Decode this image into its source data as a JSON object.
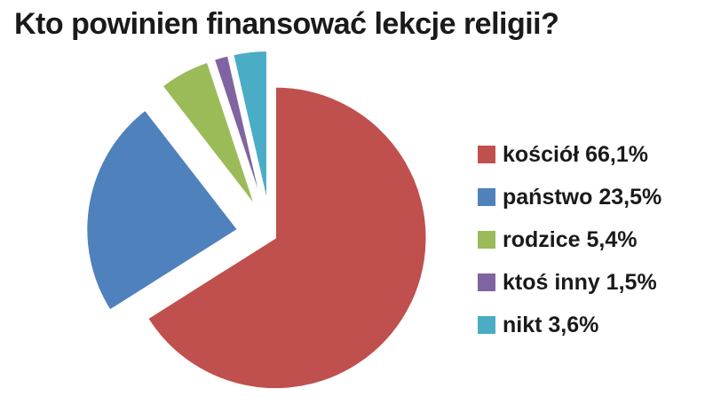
{
  "chart_data": {
    "type": "pie",
    "title": "Kto powinien finansować lekcje religii?",
    "legend_position": "right",
    "series": [
      {
        "name": "kościół",
        "value": 66.1,
        "label": "kościół 66,1%",
        "color": "#c0504d"
      },
      {
        "name": "państwo",
        "value": 23.5,
        "label": "państwo 23,5%",
        "color": "#4f81bd"
      },
      {
        "name": "rodzice",
        "value": 5.4,
        "label": "rodzice 5,4%",
        "color": "#9bbb59"
      },
      {
        "name": "ktoś inny",
        "value": 1.5,
        "label": "ktoś inny 1,5%",
        "color": "#8064a2"
      },
      {
        "name": "nikt",
        "value": 3.6,
        "label": "nikt 3,6%",
        "color": "#4bacc6"
      }
    ]
  }
}
